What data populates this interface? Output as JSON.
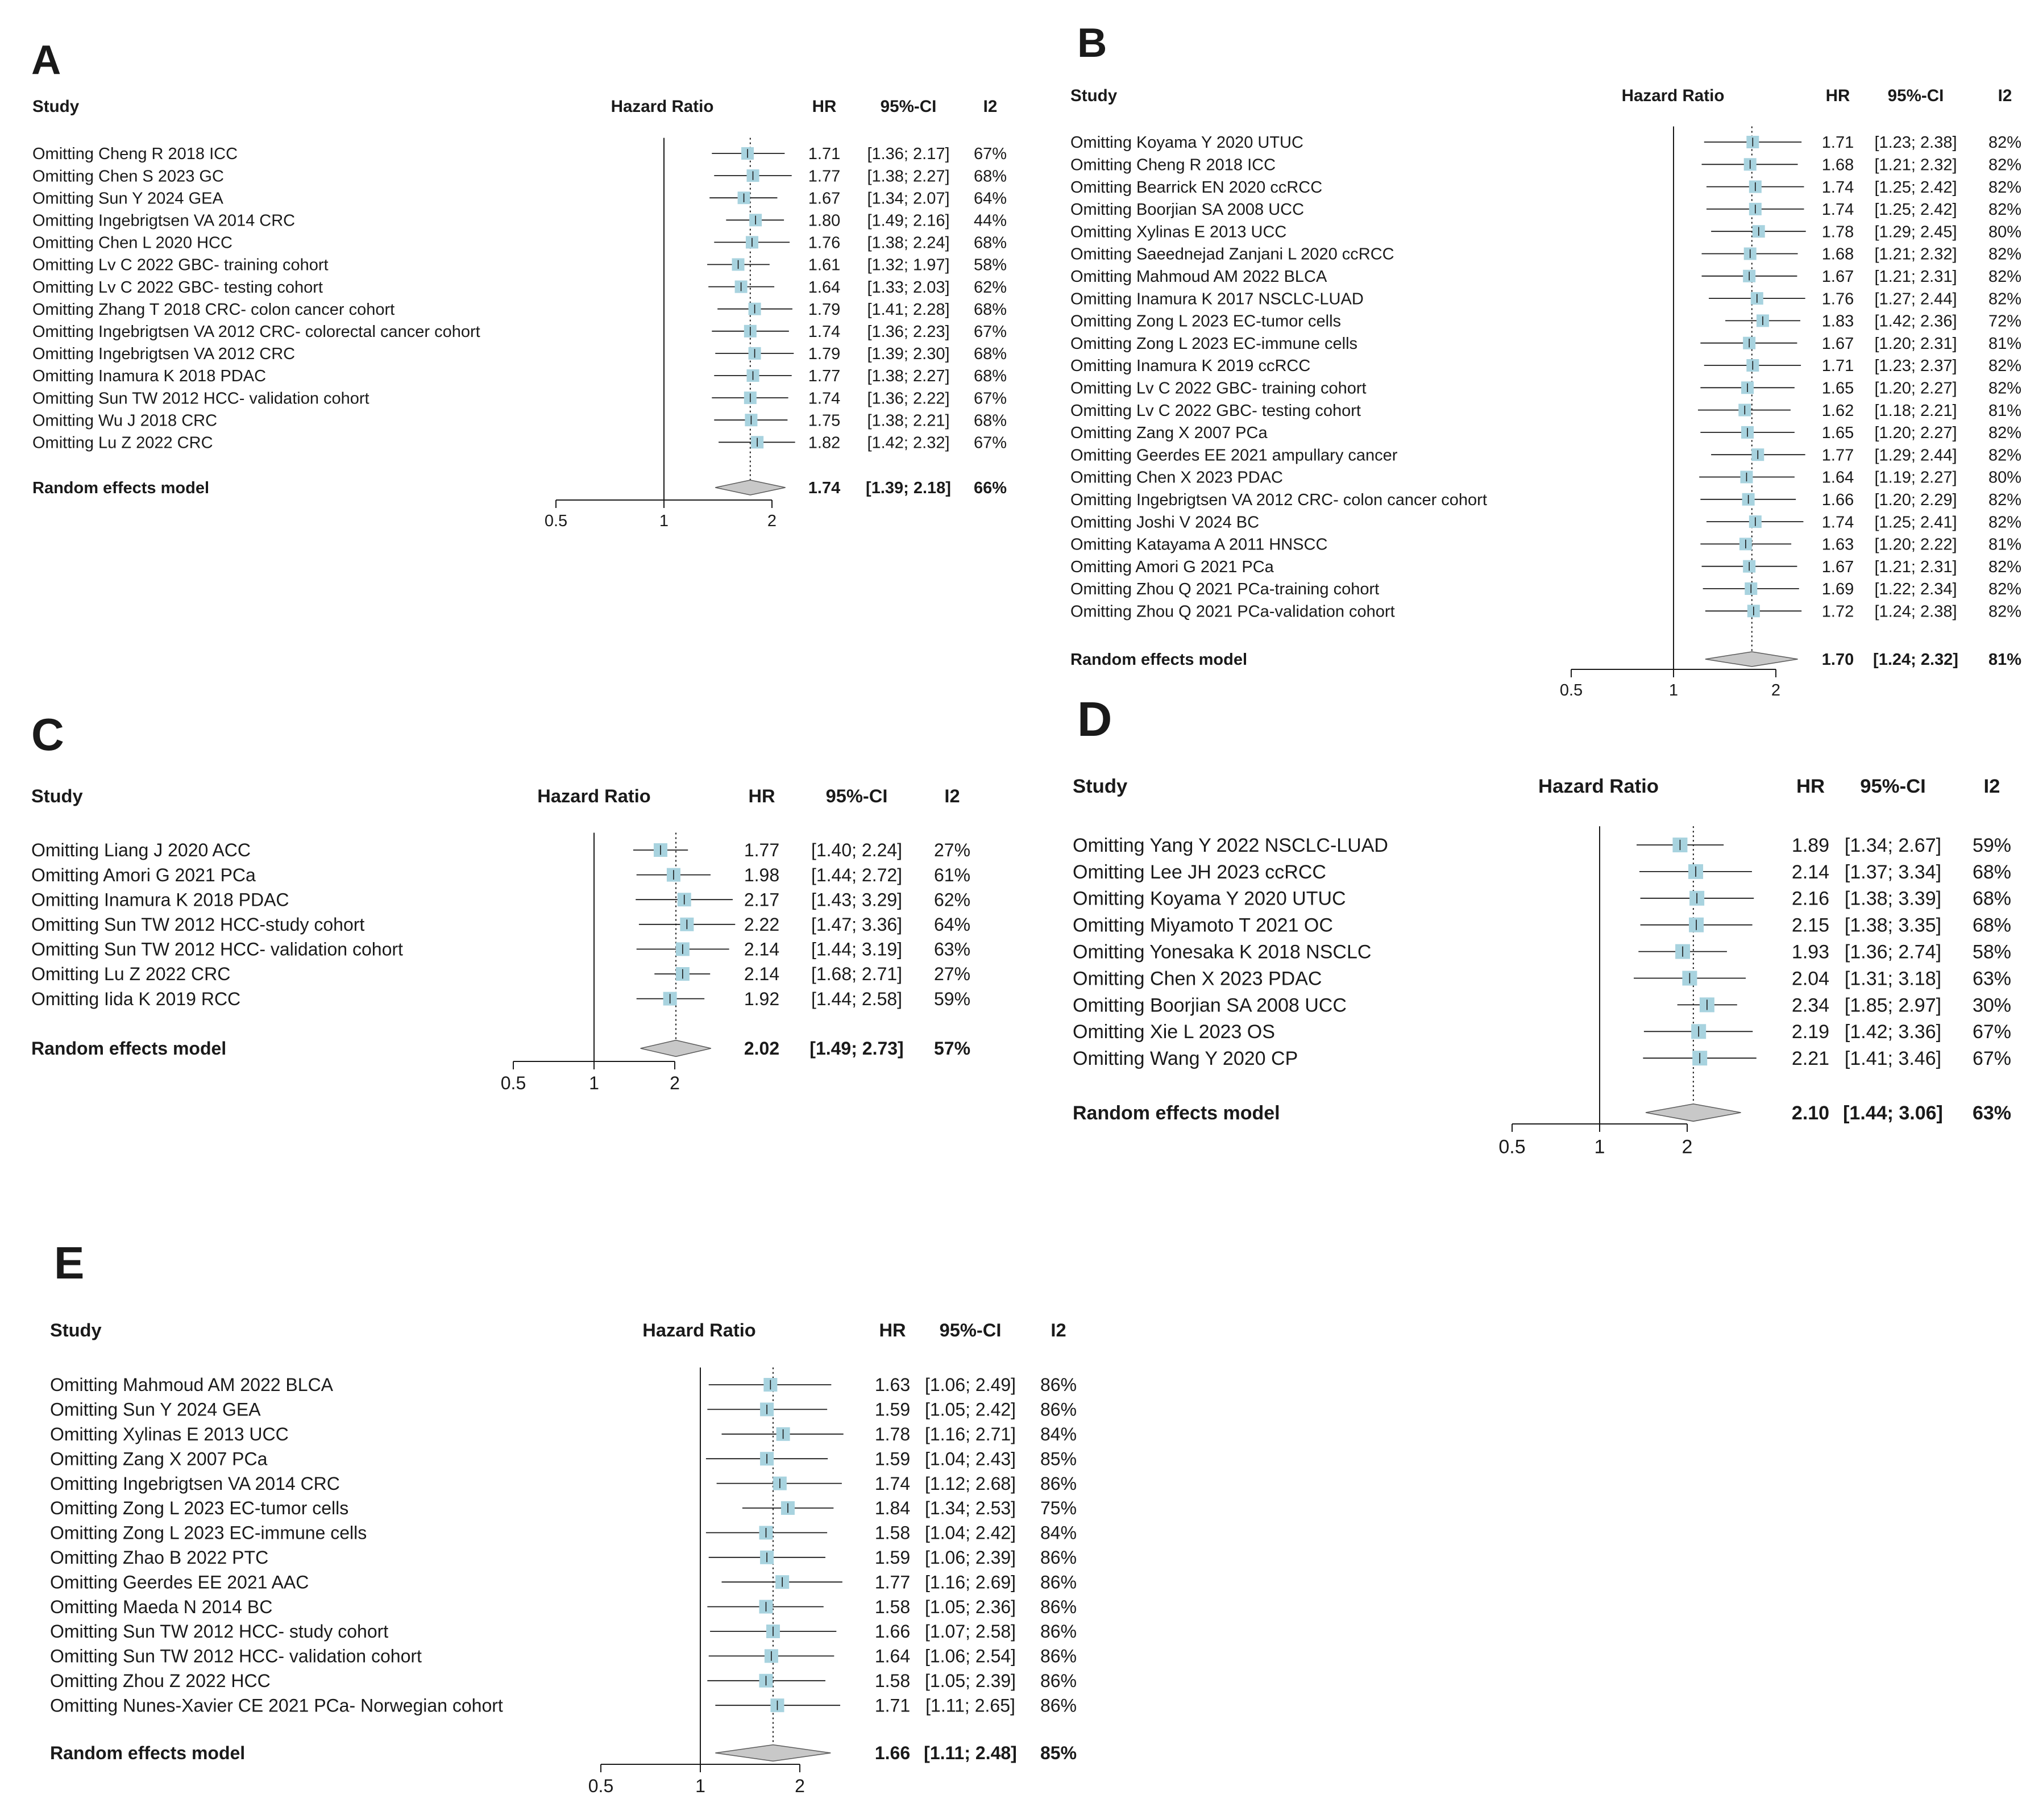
{
  "colors": {
    "box": "#a8d3df",
    "box_stroke": "#9cc9d6",
    "diamond": "#c8c8c8",
    "diamond_stroke": "#5a5a5a",
    "line": "#1a1a1a"
  },
  "chart_data": [
    {
      "type": "forest",
      "panel_label": "A",
      "headers": {
        "study": "Study",
        "axis": "Hazard Ratio",
        "hr": "HR",
        "ci": "95%-CI",
        "i2": "I2"
      },
      "xscale": "log",
      "xticks": [
        "0.5",
        "1",
        "2"
      ],
      "xlim": [
        0.5,
        2.0
      ],
      "reference_line": 1,
      "studies": [
        {
          "label": "Omitting Cheng R 2018 ICC",
          "hr": 1.71,
          "lo": 1.36,
          "hi": 2.17,
          "hr_text": "1.71",
          "ci_text": "[1.36; 2.17]",
          "i2": "67%"
        },
        {
          "label": "Omitting Chen S 2023 GC",
          "hr": 1.77,
          "lo": 1.38,
          "hi": 2.27,
          "hr_text": "1.77",
          "ci_text": "[1.38; 2.27]",
          "i2": "68%"
        },
        {
          "label": "Omitting Sun Y 2024 GEA",
          "hr": 1.67,
          "lo": 1.34,
          "hi": 2.07,
          "hr_text": "1.67",
          "ci_text": "[1.34; 2.07]",
          "i2": "64%"
        },
        {
          "label": "Omitting Ingebrigtsen VA 2014 CRC",
          "hr": 1.8,
          "lo": 1.49,
          "hi": 2.16,
          "hr_text": "1.80",
          "ci_text": "[1.49; 2.16]",
          "i2": "44%"
        },
        {
          "label": "Omitting Chen L 2020 HCC",
          "hr": 1.76,
          "lo": 1.38,
          "hi": 2.24,
          "hr_text": "1.76",
          "ci_text": "[1.38; 2.24]",
          "i2": "68%"
        },
        {
          "label": "Omitting Lv C 2022 GBC- training cohort",
          "hr": 1.61,
          "lo": 1.32,
          "hi": 1.97,
          "hr_text": "1.61",
          "ci_text": "[1.32; 1.97]",
          "i2": "58%"
        },
        {
          "label": "Omitting Lv C 2022 GBC- testing cohort",
          "hr": 1.64,
          "lo": 1.33,
          "hi": 2.03,
          "hr_text": "1.64",
          "ci_text": "[1.33; 2.03]",
          "i2": "62%"
        },
        {
          "label": "Omitting Zhang T 2018 CRC- colon cancer cohort",
          "hr": 1.79,
          "lo": 1.41,
          "hi": 2.28,
          "hr_text": "1.79",
          "ci_text": "[1.41; 2.28]",
          "i2": "68%"
        },
        {
          "label": "Omitting Ingebrigtsen VA 2012 CRC- colorectal cancer cohort",
          "hr": 1.74,
          "lo": 1.36,
          "hi": 2.23,
          "hr_text": "1.74",
          "ci_text": "[1.36; 2.23]",
          "i2": "67%"
        },
        {
          "label": "Omitting Ingebrigtsen VA 2012 CRC",
          "hr": 1.79,
          "lo": 1.39,
          "hi": 2.3,
          "hr_text": "1.79",
          "ci_text": "[1.39; 2.30]",
          "i2": "68%"
        },
        {
          "label": "Omitting Inamura K 2018 PDAC",
          "hr": 1.77,
          "lo": 1.38,
          "hi": 2.27,
          "hr_text": "1.77",
          "ci_text": "[1.38; 2.27]",
          "i2": "68%"
        },
        {
          "label": "Omitting Sun TW 2012 HCC- validation cohort",
          "hr": 1.74,
          "lo": 1.36,
          "hi": 2.22,
          "hr_text": "1.74",
          "ci_text": "[1.36; 2.22]",
          "i2": "67%"
        },
        {
          "label": "Omitting Wu J 2018 CRC",
          "hr": 1.75,
          "lo": 1.38,
          "hi": 2.21,
          "hr_text": "1.75",
          "ci_text": "[1.38; 2.21]",
          "i2": "68%"
        },
        {
          "label": "Omitting Lu Z 2022 CRC",
          "hr": 1.82,
          "lo": 1.42,
          "hi": 2.32,
          "hr_text": "1.82",
          "ci_text": "[1.42; 2.32]",
          "i2": "67%"
        }
      ],
      "pooled": {
        "label": "Random effects model",
        "hr": 1.74,
        "lo": 1.39,
        "hi": 2.18,
        "hr_text": "1.74",
        "ci_text": "[1.39; 2.18]",
        "i2": "66%"
      }
    },
    {
      "type": "forest",
      "panel_label": "B",
      "headers": {
        "study": "Study",
        "axis": "Hazard Ratio",
        "hr": "HR",
        "ci": "95%-CI",
        "i2": "I2"
      },
      "xscale": "log",
      "xticks": [
        "0.5",
        "1",
        "2"
      ],
      "xlim": [
        0.5,
        2.0
      ],
      "reference_line": 1,
      "studies": [
        {
          "label": "Omitting Koyama Y 2020 UTUC",
          "hr": 1.71,
          "lo": 1.23,
          "hi": 2.38,
          "hr_text": "1.71",
          "ci_text": "[1.23; 2.38]",
          "i2": "82%"
        },
        {
          "label": "Omitting Cheng R 2018 ICC",
          "hr": 1.68,
          "lo": 1.21,
          "hi": 2.32,
          "hr_text": "1.68",
          "ci_text": "[1.21; 2.32]",
          "i2": "82%"
        },
        {
          "label": "Omitting Bearrick EN 2020 ccRCC",
          "hr": 1.74,
          "lo": 1.25,
          "hi": 2.42,
          "hr_text": "1.74",
          "ci_text": "[1.25; 2.42]",
          "i2": "82%"
        },
        {
          "label": "Omitting Boorjian SA 2008 UCC",
          "hr": 1.74,
          "lo": 1.25,
          "hi": 2.42,
          "hr_text": "1.74",
          "ci_text": "[1.25; 2.42]",
          "i2": "82%"
        },
        {
          "label": "Omitting Xylinas E 2013 UCC",
          "hr": 1.78,
          "lo": 1.29,
          "hi": 2.45,
          "hr_text": "1.78",
          "ci_text": "[1.29; 2.45]",
          "i2": "80%"
        },
        {
          "label": "Omitting Saeednejad Zanjani L 2020 ccRCC",
          "hr": 1.68,
          "lo": 1.21,
          "hi": 2.32,
          "hr_text": "1.68",
          "ci_text": "[1.21; 2.32]",
          "i2": "82%"
        },
        {
          "label": "Omitting Mahmoud AM 2022 BLCA",
          "hr": 1.67,
          "lo": 1.21,
          "hi": 2.31,
          "hr_text": "1.67",
          "ci_text": "[1.21; 2.31]",
          "i2": "82%"
        },
        {
          "label": "Omitting Inamura K 2017 NSCLC-LUAD",
          "hr": 1.76,
          "lo": 1.27,
          "hi": 2.44,
          "hr_text": "1.76",
          "ci_text": "[1.27; 2.44]",
          "i2": "82%"
        },
        {
          "label": "Omitting Zong L 2023 EC-tumor cells",
          "hr": 1.83,
          "lo": 1.42,
          "hi": 2.36,
          "hr_text": "1.83",
          "ci_text": "[1.42; 2.36]",
          "i2": "72%"
        },
        {
          "label": "Omitting Zong L 2023 EC-immune cells",
          "hr": 1.67,
          "lo": 1.2,
          "hi": 2.31,
          "hr_text": "1.67",
          "ci_text": "[1.20; 2.31]",
          "i2": "81%"
        },
        {
          "label": "Omitting Inamura K 2019 ccRCC",
          "hr": 1.71,
          "lo": 1.23,
          "hi": 2.37,
          "hr_text": "1.71",
          "ci_text": "[1.23; 2.37]",
          "i2": "82%"
        },
        {
          "label": "Omitting Lv C 2022 GBC- training cohort",
          "hr": 1.65,
          "lo": 1.2,
          "hi": 2.27,
          "hr_text": "1.65",
          "ci_text": "[1.20; 2.27]",
          "i2": "82%"
        },
        {
          "label": "Omitting Lv C 2022 GBC- testing cohort",
          "hr": 1.62,
          "lo": 1.18,
          "hi": 2.21,
          "hr_text": "1.62",
          "ci_text": "[1.18; 2.21]",
          "i2": "81%"
        },
        {
          "label": "Omitting Zang X 2007 PCa",
          "hr": 1.65,
          "lo": 1.2,
          "hi": 2.27,
          "hr_text": "1.65",
          "ci_text": "[1.20; 2.27]",
          "i2": "82%"
        },
        {
          "label": "Omitting Geerdes EE 2021 ampullary cancer",
          "hr": 1.77,
          "lo": 1.29,
          "hi": 2.44,
          "hr_text": "1.77",
          "ci_text": "[1.29; 2.44]",
          "i2": "82%"
        },
        {
          "label": "Omitting Chen X 2023 PDAC",
          "hr": 1.64,
          "lo": 1.19,
          "hi": 2.27,
          "hr_text": "1.64",
          "ci_text": "[1.19; 2.27]",
          "i2": "80%"
        },
        {
          "label": "Omitting Ingebrigtsen VA 2012 CRC- colon cancer cohort",
          "hr": 1.66,
          "lo": 1.2,
          "hi": 2.29,
          "hr_text": "1.66",
          "ci_text": "[1.20; 2.29]",
          "i2": "82%"
        },
        {
          "label": "Omitting Joshi V 2024 BC",
          "hr": 1.74,
          "lo": 1.25,
          "hi": 2.41,
          "hr_text": "1.74",
          "ci_text": "[1.25; 2.41]",
          "i2": "82%"
        },
        {
          "label": "Omitting Katayama A 2011 HNSCC",
          "hr": 1.63,
          "lo": 1.2,
          "hi": 2.22,
          "hr_text": "1.63",
          "ci_text": "[1.20; 2.22]",
          "i2": "81%"
        },
        {
          "label": "Omitting Amori G 2021 PCa",
          "hr": 1.67,
          "lo": 1.21,
          "hi": 2.31,
          "hr_text": "1.67",
          "ci_text": "[1.21; 2.31]",
          "i2": "82%"
        },
        {
          "label": "Omitting Zhou Q 2021 PCa-training cohort",
          "hr": 1.69,
          "lo": 1.22,
          "hi": 2.34,
          "hr_text": "1.69",
          "ci_text": "[1.22; 2.34]",
          "i2": "82%"
        },
        {
          "label": "Omitting Zhou Q 2021 PCa-validation cohort",
          "hr": 1.72,
          "lo": 1.24,
          "hi": 2.38,
          "hr_text": "1.72",
          "ci_text": "[1.24; 2.38]",
          "i2": "82%"
        }
      ],
      "pooled": {
        "label": "Random effects model",
        "hr": 1.7,
        "lo": 1.24,
        "hi": 2.32,
        "hr_text": "1.70",
        "ci_text": "[1.24; 2.32]",
        "i2": "81%"
      }
    },
    {
      "type": "forest",
      "panel_label": "C",
      "headers": {
        "study": "Study",
        "axis": "Hazard Ratio",
        "hr": "HR",
        "ci": "95%-CI",
        "i2": "I2"
      },
      "xscale": "log",
      "xticks": [
        "0.5",
        "1",
        "2"
      ],
      "xlim": [
        0.5,
        2.0
      ],
      "reference_line": 1,
      "studies": [
        {
          "label": "Omitting Liang J 2020 ACC",
          "hr": 1.77,
          "lo": 1.4,
          "hi": 2.24,
          "hr_text": "1.77",
          "ci_text": "[1.40; 2.24]",
          "i2": "27%"
        },
        {
          "label": "Omitting Amori G 2021 PCa",
          "hr": 1.98,
          "lo": 1.44,
          "hi": 2.72,
          "hr_text": "1.98",
          "ci_text": "[1.44; 2.72]",
          "i2": "61%"
        },
        {
          "label": "Omitting Inamura K 2018 PDAC",
          "hr": 2.17,
          "lo": 1.43,
          "hi": 3.29,
          "hr_text": "2.17",
          "ci_text": "[1.43; 3.29]",
          "i2": "62%"
        },
        {
          "label": "Omitting Sun TW 2012 HCC-study cohort",
          "hr": 2.22,
          "lo": 1.47,
          "hi": 3.36,
          "hr_text": "2.22",
          "ci_text": "[1.47; 3.36]",
          "i2": "64%"
        },
        {
          "label": "Omitting Sun TW 2012 HCC- validation cohort",
          "hr": 2.14,
          "lo": 1.44,
          "hi": 3.19,
          "hr_text": "2.14",
          "ci_text": "[1.44; 3.19]",
          "i2": "63%"
        },
        {
          "label": "Omitting Lu Z 2022 CRC",
          "hr": 2.14,
          "lo": 1.68,
          "hi": 2.71,
          "hr_text": "2.14",
          "ci_text": "[1.68; 2.71]",
          "i2": "27%"
        },
        {
          "label": "Omitting Iida K 2019 RCC",
          "hr": 1.92,
          "lo": 1.44,
          "hi": 2.58,
          "hr_text": "1.92",
          "ci_text": "[1.44; 2.58]",
          "i2": "59%"
        }
      ],
      "pooled": {
        "label": "Random effects model",
        "hr": 2.02,
        "lo": 1.49,
        "hi": 2.73,
        "hr_text": "2.02",
        "ci_text": "[1.49; 2.73]",
        "i2": "57%"
      }
    },
    {
      "type": "forest",
      "panel_label": "D",
      "headers": {
        "study": "Study",
        "axis": "Hazard Ratio",
        "hr": "HR",
        "ci": "95%-CI",
        "i2": "I2"
      },
      "xscale": "log",
      "xticks": [
        "0.5",
        "1",
        "2"
      ],
      "xlim": [
        0.5,
        2.0
      ],
      "reference_line": 1,
      "studies": [
        {
          "label": "Omitting Yang Y 2022 NSCLC-LUAD",
          "hr": 1.89,
          "lo": 1.34,
          "hi": 2.67,
          "hr_text": "1.89",
          "ci_text": "[1.34; 2.67]",
          "i2": "59%"
        },
        {
          "label": "Omitting Lee JH 2023 ccRCC",
          "hr": 2.14,
          "lo": 1.37,
          "hi": 3.34,
          "hr_text": "2.14",
          "ci_text": "[1.37; 3.34]",
          "i2": "68%"
        },
        {
          "label": "Omitting Koyama Y 2020 UTUC",
          "hr": 2.16,
          "lo": 1.38,
          "hi": 3.39,
          "hr_text": "2.16",
          "ci_text": "[1.38; 3.39]",
          "i2": "68%"
        },
        {
          "label": "Omitting Miyamoto T 2021 OC",
          "hr": 2.15,
          "lo": 1.38,
          "hi": 3.35,
          "hr_text": "2.15",
          "ci_text": "[1.38; 3.35]",
          "i2": "68%"
        },
        {
          "label": "Omitting Yonesaka K 2018 NSCLC",
          "hr": 1.93,
          "lo": 1.36,
          "hi": 2.74,
          "hr_text": "1.93",
          "ci_text": "[1.36; 2.74]",
          "i2": "58%"
        },
        {
          "label": "Omitting Chen X 2023 PDAC",
          "hr": 2.04,
          "lo": 1.31,
          "hi": 3.18,
          "hr_text": "2.04",
          "ci_text": "[1.31; 3.18]",
          "i2": "63%"
        },
        {
          "label": "Omitting Boorjian SA 2008 UCC",
          "hr": 2.34,
          "lo": 1.85,
          "hi": 2.97,
          "hr_text": "2.34",
          "ci_text": "[1.85; 2.97]",
          "i2": "30%"
        },
        {
          "label": "Omitting Xie L 2023 OS",
          "hr": 2.19,
          "lo": 1.42,
          "hi": 3.36,
          "hr_text": "2.19",
          "ci_text": "[1.42; 3.36]",
          "i2": "67%"
        },
        {
          "label": "Omitting Wang Y 2020 CP",
          "hr": 2.21,
          "lo": 1.41,
          "hi": 3.46,
          "hr_text": "2.21",
          "ci_text": "[1.41; 3.46]",
          "i2": "67%"
        }
      ],
      "pooled": {
        "label": "Random effects model",
        "hr": 2.1,
        "lo": 1.44,
        "hi": 3.06,
        "hr_text": "2.10",
        "ci_text": "[1.44; 3.06]",
        "i2": "63%"
      }
    },
    {
      "type": "forest",
      "panel_label": "E",
      "headers": {
        "study": "Study",
        "axis": "Hazard Ratio",
        "hr": "HR",
        "ci": "95%-CI",
        "i2": "I2"
      },
      "xscale": "log",
      "xticks": [
        "0.5",
        "1",
        "2"
      ],
      "xlim": [
        0.5,
        2.0
      ],
      "reference_line": 1,
      "studies": [
        {
          "label": "Omitting Mahmoud AM 2022 BLCA",
          "hr": 1.63,
          "lo": 1.06,
          "hi": 2.49,
          "hr_text": "1.63",
          "ci_text": "[1.06; 2.49]",
          "i2": "86%"
        },
        {
          "label": "Omitting Sun Y 2024 GEA",
          "hr": 1.59,
          "lo": 1.05,
          "hi": 2.42,
          "hr_text": "1.59",
          "ci_text": "[1.05; 2.42]",
          "i2": "86%"
        },
        {
          "label": "Omitting Xylinas E 2013 UCC",
          "hr": 1.78,
          "lo": 1.16,
          "hi": 2.71,
          "hr_text": "1.78",
          "ci_text": "[1.16; 2.71]",
          "i2": "84%"
        },
        {
          "label": "Omitting Zang X 2007 PCa",
          "hr": 1.59,
          "lo": 1.04,
          "hi": 2.43,
          "hr_text": "1.59",
          "ci_text": "[1.04; 2.43]",
          "i2": "85%"
        },
        {
          "label": "Omitting Ingebrigtsen VA 2014 CRC",
          "hr": 1.74,
          "lo": 1.12,
          "hi": 2.68,
          "hr_text": "1.74",
          "ci_text": "[1.12; 2.68]",
          "i2": "86%"
        },
        {
          "label": "Omitting Zong L 2023 EC-tumor cells",
          "hr": 1.84,
          "lo": 1.34,
          "hi": 2.53,
          "hr_text": "1.84",
          "ci_text": "[1.34; 2.53]",
          "i2": "75%"
        },
        {
          "label": "Omitting Zong L 2023 EC-immune cells",
          "hr": 1.58,
          "lo": 1.04,
          "hi": 2.42,
          "hr_text": "1.58",
          "ci_text": "[1.04; 2.42]",
          "i2": "84%"
        },
        {
          "label": "Omitting Zhao B 2022 PTC",
          "hr": 1.59,
          "lo": 1.06,
          "hi": 2.39,
          "hr_text": "1.59",
          "ci_text": "[1.06; 2.39]",
          "i2": "86%"
        },
        {
          "label": "Omitting Geerdes EE 2021 AAC",
          "hr": 1.77,
          "lo": 1.16,
          "hi": 2.69,
          "hr_text": "1.77",
          "ci_text": "[1.16; 2.69]",
          "i2": "86%"
        },
        {
          "label": "Omitting Maeda N 2014 BC",
          "hr": 1.58,
          "lo": 1.05,
          "hi": 2.36,
          "hr_text": "1.58",
          "ci_text": "[1.05; 2.36]",
          "i2": "86%"
        },
        {
          "label": "Omitting Sun TW 2012 HCC- study cohort",
          "hr": 1.66,
          "lo": 1.07,
          "hi": 2.58,
          "hr_text": "1.66",
          "ci_text": "[1.07; 2.58]",
          "i2": "86%"
        },
        {
          "label": "Omitting Sun TW 2012 HCC- validation cohort",
          "hr": 1.64,
          "lo": 1.06,
          "hi": 2.54,
          "hr_text": "1.64",
          "ci_text": "[1.06; 2.54]",
          "i2": "86%"
        },
        {
          "label": "Omitting Zhou Z 2022 HCC",
          "hr": 1.58,
          "lo": 1.05,
          "hi": 2.39,
          "hr_text": "1.58",
          "ci_text": "[1.05; 2.39]",
          "i2": "86%"
        },
        {
          "label": "Omitting Nunes-Xavier CE 2021 PCa- Norwegian cohort",
          "hr": 1.71,
          "lo": 1.11,
          "hi": 2.65,
          "hr_text": "1.71",
          "ci_text": "[1.11; 2.65]",
          "i2": "86%"
        }
      ],
      "pooled": {
        "label": "Random effects model",
        "hr": 1.66,
        "lo": 1.11,
        "hi": 2.48,
        "hr_text": "1.66",
        "ci_text": "[1.11; 2.48]",
        "i2": "85%"
      }
    }
  ]
}
